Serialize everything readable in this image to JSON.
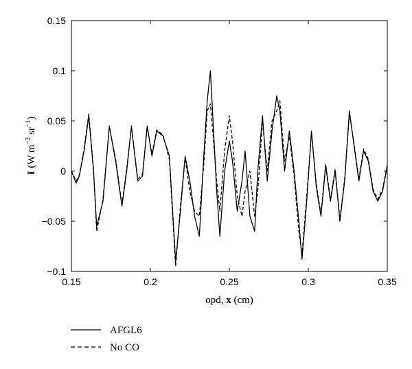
{
  "chart_data": {
    "type": "line",
    "title": "",
    "xlabel_pre": "opd, ",
    "xlabel_bold": "x",
    "xlabel_post": " (cm)",
    "ylabel_bold": "I",
    "ylabel_unit": "(W m",
    "ylabel_exp1": "−2",
    "ylabel_mid": " sr",
    "ylabel_exp2": "−1",
    "ylabel_close": ")",
    "xlim": [
      0.15,
      0.35
    ],
    "ylim": [
      -0.1,
      0.15
    ],
    "xticks": [
      0.15,
      0.2,
      0.25,
      0.3,
      0.35
    ],
    "xtick_labels": [
      "0.15",
      "0.2",
      "0.25",
      "0.3",
      "0.35"
    ],
    "yticks": [
      -0.1,
      -0.05,
      0,
      0.05,
      0.1,
      0.15
    ],
    "ytick_labels": [
      "−0.1",
      "−0.05",
      "0",
      "0.05",
      "0.1",
      "0.15"
    ],
    "grid": false,
    "legend_position": "below-left",
    "series": [
      {
        "name": "AFGL6",
        "style": "solid",
        "color": "#000000",
        "x": [
          0.15,
          0.153,
          0.155,
          0.158,
          0.161,
          0.164,
          0.166,
          0.17,
          0.174,
          0.178,
          0.182,
          0.185,
          0.188,
          0.192,
          0.195,
          0.198,
          0.201,
          0.204,
          0.208,
          0.212,
          0.216,
          0.219,
          0.222,
          0.225,
          0.228,
          0.231,
          0.234,
          0.236,
          0.238,
          0.24,
          0.242,
          0.244,
          0.247,
          0.25,
          0.252,
          0.255,
          0.258,
          0.26,
          0.263,
          0.266,
          0.268,
          0.271,
          0.274,
          0.277,
          0.28,
          0.282,
          0.285,
          0.288,
          0.291,
          0.294,
          0.296,
          0.299,
          0.302,
          0.305,
          0.308,
          0.311,
          0.314,
          0.317,
          0.32,
          0.323,
          0.326,
          0.329,
          0.332,
          0.335,
          0.338,
          0.341,
          0.344,
          0.347,
          0.35
        ],
        "y": [
          0.0,
          -0.012,
          -0.005,
          0.02,
          0.055,
          0.0,
          -0.055,
          -0.03,
          0.045,
          0.01,
          -0.035,
          0.0,
          0.045,
          -0.01,
          -0.005,
          0.045,
          0.015,
          0.04,
          0.035,
          0.015,
          -0.09,
          -0.04,
          0.015,
          -0.01,
          -0.045,
          -0.065,
          0.02,
          0.07,
          0.1,
          0.04,
          -0.02,
          -0.065,
          0.0,
          0.03,
          0.01,
          -0.04,
          -0.01,
          0.02,
          -0.045,
          -0.06,
          0.0,
          0.055,
          -0.01,
          0.04,
          0.075,
          0.06,
          0.0,
          0.04,
          0.0,
          -0.05,
          -0.088,
          -0.03,
          0.04,
          -0.015,
          -0.045,
          0.005,
          -0.03,
          0.0,
          -0.05,
          -0.01,
          0.06,
          0.025,
          -0.01,
          0.02,
          0.01,
          -0.02,
          -0.03,
          -0.02,
          0.005
        ]
      },
      {
        "name": "No CO",
        "style": "dashed",
        "color": "#000000",
        "x": [
          0.15,
          0.153,
          0.155,
          0.158,
          0.161,
          0.164,
          0.166,
          0.17,
          0.174,
          0.178,
          0.182,
          0.185,
          0.188,
          0.192,
          0.195,
          0.198,
          0.201,
          0.204,
          0.208,
          0.212,
          0.216,
          0.219,
          0.222,
          0.225,
          0.228,
          0.231,
          0.234,
          0.236,
          0.238,
          0.24,
          0.242,
          0.244,
          0.247,
          0.25,
          0.252,
          0.255,
          0.258,
          0.26,
          0.263,
          0.266,
          0.268,
          0.271,
          0.274,
          0.277,
          0.28,
          0.282,
          0.285,
          0.288,
          0.291,
          0.294,
          0.296,
          0.299,
          0.302,
          0.305,
          0.308,
          0.311,
          0.314,
          0.317,
          0.32,
          0.323,
          0.326,
          0.329,
          0.332,
          0.335,
          0.338,
          0.341,
          0.344,
          0.347,
          0.35
        ],
        "y": [
          0.0,
          -0.01,
          -0.004,
          0.022,
          0.057,
          0.002,
          -0.06,
          -0.028,
          0.044,
          0.012,
          -0.033,
          0.002,
          0.044,
          -0.008,
          -0.003,
          0.044,
          0.017,
          0.041,
          0.036,
          0.012,
          -0.095,
          -0.035,
          0.013,
          -0.02,
          -0.04,
          -0.045,
          0.01,
          0.06,
          0.067,
          0.03,
          -0.01,
          -0.04,
          0.02,
          0.055,
          0.03,
          -0.025,
          -0.045,
          -0.02,
          0.0,
          -0.045,
          -0.02,
          0.05,
          0.0,
          0.05,
          0.06,
          0.07,
          0.01,
          0.035,
          -0.005,
          -0.06,
          -0.083,
          -0.025,
          0.038,
          -0.012,
          -0.043,
          0.007,
          -0.028,
          0.002,
          -0.048,
          -0.008,
          0.057,
          0.027,
          -0.008,
          0.022,
          0.012,
          -0.018,
          -0.028,
          -0.018,
          0.006
        ]
      }
    ]
  }
}
